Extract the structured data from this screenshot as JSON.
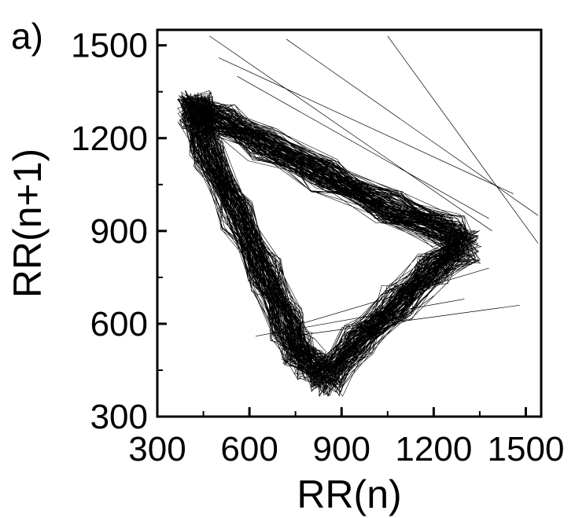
{
  "panel_label": "a)",
  "chart_data": {
    "type": "line",
    "title": "",
    "xlabel": "RR(n)",
    "ylabel": "RR(n+1)",
    "xlim": [
      300,
      1550
    ],
    "ylim": [
      300,
      1550
    ],
    "x_ticks": [
      "300",
      "600",
      "900",
      "1200",
      "1500"
    ],
    "y_ticks": [
      "300",
      "600",
      "900",
      "1200",
      "1500"
    ],
    "grid": false,
    "legend": "none",
    "line_color": "#000000",
    "series": [
      {
        "vertices_rr": [
          [
            420,
            1300
          ],
          [
            460,
            1150
          ],
          [
            560,
            950
          ],
          [
            650,
            760
          ],
          [
            720,
            600
          ],
          [
            760,
            520
          ],
          [
            800,
            470
          ],
          [
            850,
            420
          ],
          [
            950,
            540
          ],
          [
            1080,
            670
          ],
          [
            1200,
            780
          ],
          [
            1300,
            850
          ],
          [
            1250,
            900
          ],
          [
            1050,
            980
          ],
          [
            850,
            1080
          ],
          [
            650,
            1180
          ],
          [
            500,
            1260
          ],
          [
            430,
            1280
          ]
        ]
      }
    ],
    "outlier_segments_rr": [
      [
        [
          470,
          1530
        ],
        [
          1390,
          900
        ]
      ],
      [
        [
          720,
          1520
        ],
        [
          1540,
          950
        ]
      ],
      [
        [
          1050,
          1530
        ],
        [
          1540,
          860
        ]
      ],
      [
        [
          500,
          1460
        ],
        [
          1460,
          1020
        ]
      ],
      [
        [
          560,
          1400
        ],
        [
          1380,
          940
        ]
      ],
      [
        [
          700,
          580
        ],
        [
          1380,
          780
        ]
      ],
      [
        [
          620,
          560
        ],
        [
          1300,
          680
        ]
      ],
      [
        [
          740,
          560
        ],
        [
          1480,
          660
        ]
      ],
      [
        [
          900,
          470
        ],
        [
          1200,
          690
        ]
      ]
    ]
  }
}
